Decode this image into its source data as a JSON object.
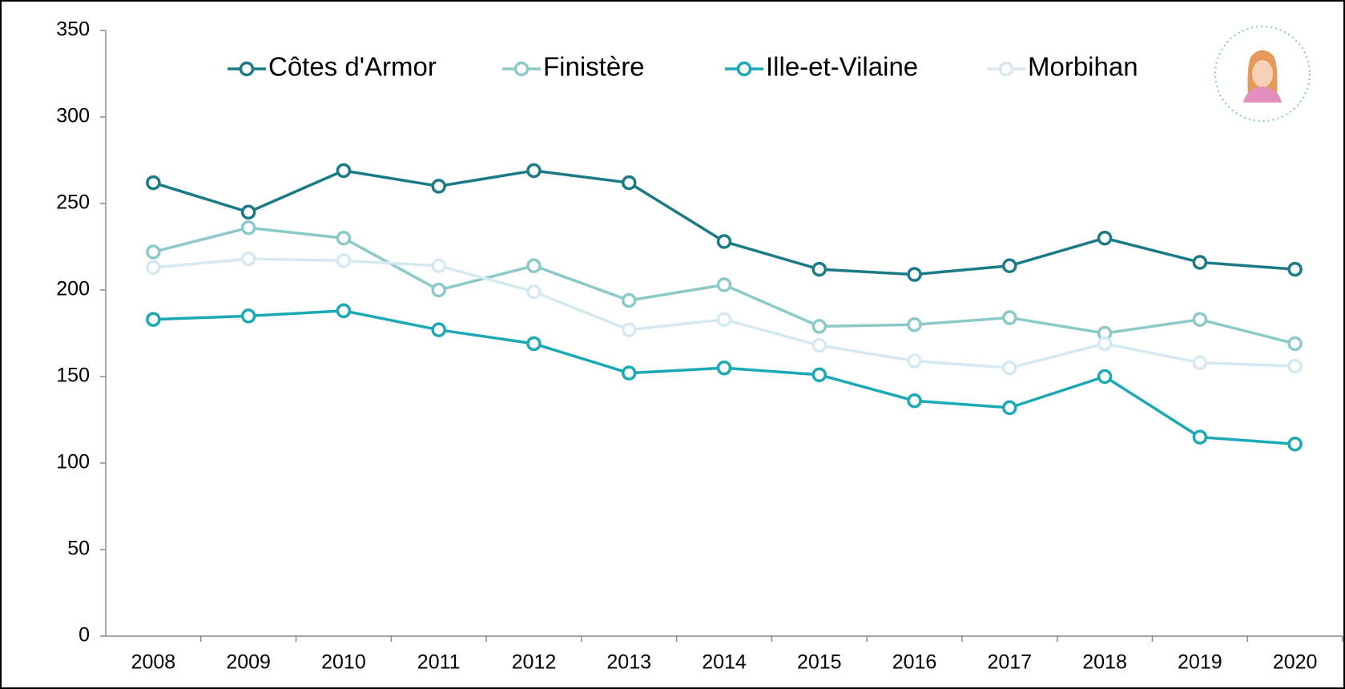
{
  "chart_data": {
    "type": "line",
    "categories": [
      "2008",
      "2009",
      "2010",
      "2011",
      "2012",
      "2013",
      "2014",
      "2015",
      "2016",
      "2017",
      "2018",
      "2019",
      "2020"
    ],
    "series": [
      {
        "name": "Côtes d'Armor",
        "color": "#1a7a85",
        "values": [
          262,
          245,
          269,
          260,
          269,
          262,
          228,
          212,
          209,
          214,
          230,
          216,
          212
        ]
      },
      {
        "name": "Finistère",
        "color": "#8ccac9",
        "values": [
          222,
          236,
          230,
          200,
          214,
          194,
          203,
          179,
          180,
          184,
          175,
          183,
          169
        ]
      },
      {
        "name": "Ille-et-Vilaine",
        "color": "#1aa9b5",
        "values": [
          183,
          185,
          188,
          177,
          169,
          152,
          155,
          151,
          136,
          132,
          150,
          115,
          111
        ]
      },
      {
        "name": "Morbihan",
        "color": "#d4eaf0",
        "values": [
          213,
          218,
          217,
          214,
          199,
          177,
          183,
          168,
          159,
          155,
          169,
          158,
          156
        ]
      }
    ],
    "ylim": [
      0,
      350
    ],
    "yticks": [
      0,
      50,
      100,
      150,
      200,
      250,
      300,
      350
    ]
  }
}
